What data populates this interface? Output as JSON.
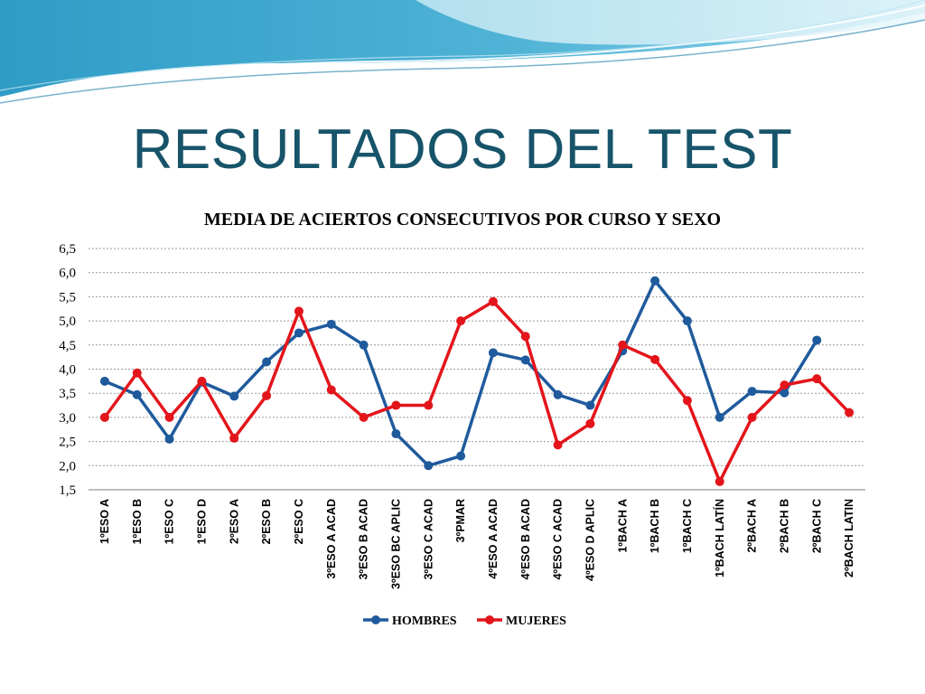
{
  "slide": {
    "title": "RESULTADOS DEL TEST"
  },
  "colors": {
    "title": "#17546a",
    "hombres": "#1f5a9c",
    "mujeres": "#e3151b",
    "grid": "#9a9a9a",
    "banner_dark": "#3ea6cc",
    "banner_light": "#a9dcee"
  },
  "chart_data": {
    "type": "line",
    "title": "MEDIA DE ACIERTOS CONSECUTIVOS POR CURSO Y SEXO",
    "xlabel": "",
    "ylabel": "",
    "ylim": [
      1.5,
      6.5
    ],
    "yticks": [
      "1,5",
      "2,0",
      "2,5",
      "3,0",
      "3,5",
      "4,0",
      "4,5",
      "5,0",
      "5,5",
      "6,0",
      "6,5"
    ],
    "grid": true,
    "legend": "bottom",
    "categories": [
      "1ºESO A",
      "1ºESO B",
      "1ºESO C",
      "1ºESO D",
      "2ºESO A",
      "2ºESO B",
      "2ºESO C",
      "3ºESO A ACAD",
      "3ºESO B ACAD",
      "3ºESO BC APLIC",
      "3ºESO C ACAD",
      "3ºPMAR",
      "4ºESO A ACAD",
      "4ºESO B ACAD",
      "4ºESO C ACAD",
      "4ºESO D APLIC",
      "1ºBACH A",
      "1ºBACH B",
      "1ºBACH C",
      "1ºBACH LATÍN",
      "2ºBACH A",
      "2ºBACH B",
      "2ºBACH C",
      "2ºBACH LATIN"
    ],
    "series": [
      {
        "name": "HOMBRES",
        "color": "#1f5a9c",
        "values": [
          3.75,
          3.47,
          2.55,
          3.73,
          3.44,
          4.15,
          4.75,
          4.93,
          4.5,
          2.66,
          2.0,
          2.2,
          4.34,
          4.19,
          3.47,
          3.25,
          4.38,
          5.83,
          5.0,
          3.0,
          3.54,
          3.51,
          4.6,
          null
        ]
      },
      {
        "name": "MUJERES",
        "color": "#e3151b",
        "values": [
          3.0,
          3.92,
          3.0,
          3.75,
          2.57,
          3.45,
          5.2,
          3.57,
          3.0,
          3.25,
          3.25,
          5.0,
          5.4,
          4.68,
          2.43,
          2.87,
          4.5,
          4.2,
          3.35,
          1.67,
          3.0,
          3.67,
          3.8,
          3.1
        ]
      }
    ]
  }
}
